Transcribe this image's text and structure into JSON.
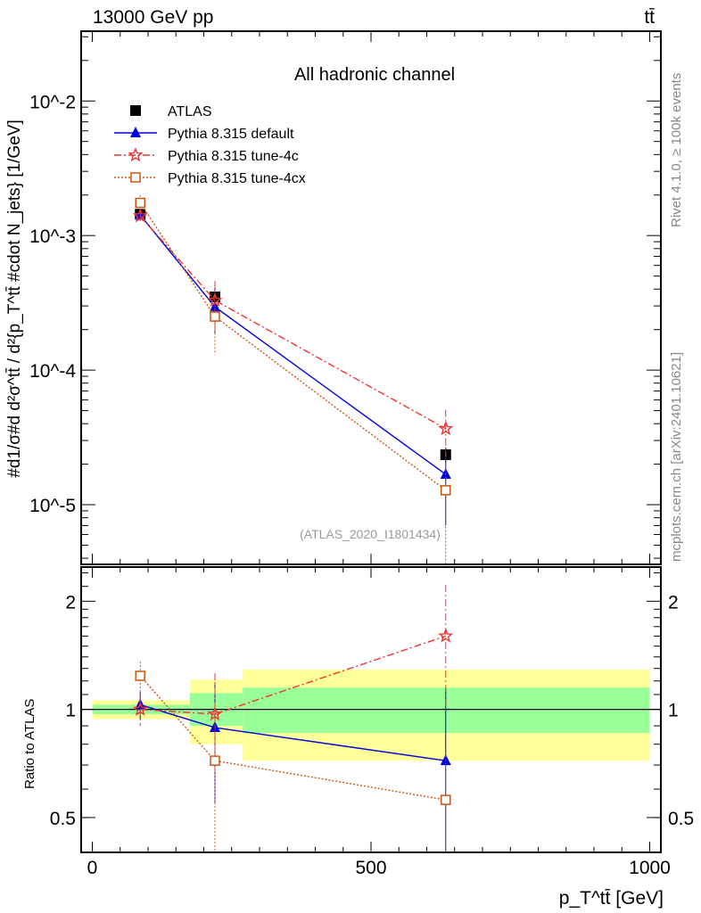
{
  "header": {
    "left": "13000 GeV pp",
    "right": "tt̄"
  },
  "side_labels": {
    "rivet": "Rivet 4.1.0, ≥ 100k events",
    "mcplots": "mcplots.cern.ch [arXiv:2401.10621]"
  },
  "chart_data": [
    {
      "type": "line",
      "title": "All hadronic channel",
      "annotation": "(ATLAS_2020_I1801434)",
      "ylabel": "#d1/σ#d d²σ^tt̄ / d²{p_T^tt̄ #cdot N_jets} [1/GeV]",
      "yscale": "log",
      "ylim": [
        3.6e-06,
        0.033
      ],
      "xlim": [
        -20,
        1020
      ],
      "ytick_labels": [
        "10^-2",
        "10^-3",
        "10^-4",
        "10^-5"
      ],
      "ytick_values": [
        0.01,
        0.001,
        0.0001,
        1e-05
      ],
      "legend_position": "top-left",
      "x": [
        86,
        220,
        634
      ],
      "series": [
        {
          "name": "ATLAS",
          "color": "#000000",
          "marker": "square",
          "values": [
            0.00144,
            0.00035,
            2.35e-05
          ],
          "err_lo": [
            0.00012,
            6e-05,
            3e-06
          ],
          "err_hi": [
            0.00012,
            6e-05,
            3e-06
          ]
        },
        {
          "name": "Pythia 8.315 default",
          "color": "#0000dd",
          "marker": "triangle",
          "line": "solid",
          "values": [
            0.00142,
            0.000295,
            1.68e-05
          ],
          "err_lo": [
            0.00012,
            0.00011,
            9.8e-06
          ],
          "err_hi": [
            0.00012,
            0.00011,
            9.8e-06
          ]
        },
        {
          "name": "Pythia 8.315 tune-4c",
          "color": "#ee3333",
          "marker": "star",
          "line": "dashdot",
          "values": [
            0.0014,
            0.00033,
            3.67e-05
          ],
          "err_lo": [
            0.00016,
            0.00013,
            1.4e-05
          ],
          "err_hi": [
            0.00016,
            0.00013,
            1.4e-05
          ]
        },
        {
          "name": "Pythia 8.315 tune-4cx",
          "color": "#cc5511",
          "marker": "open-square",
          "line": "dotted",
          "values": [
            0.00175,
            0.00025,
            1.28e-05
          ],
          "err_lo": [
            0.00025,
            0.00012,
            1.2e-05
          ],
          "err_hi": [
            0.00025,
            0.00012,
            1.2e-05
          ]
        }
      ]
    },
    {
      "type": "line",
      "ylabel": "Ratio to ATLAS",
      "xlabel": "p_T^tt̄ [GeV]",
      "yscale": "log",
      "ylim": [
        0.4,
        2.49
      ],
      "xlim": [
        -20,
        1020
      ],
      "xtick_labels": [
        "0",
        "500",
        "1000"
      ],
      "xtick_values": [
        0,
        500,
        1000
      ],
      "ytick_labels": [
        "0.5",
        "1",
        "2"
      ],
      "ytick_values": [
        0.5,
        1,
        2
      ],
      "bins": [
        [
          0,
          175
        ],
        [
          175,
          270
        ],
        [
          270,
          1000
        ]
      ],
      "band_yellow": [
        [
          0.94,
          1.06
        ],
        [
          0.8,
          1.21
        ],
        [
          0.72,
          1.29
        ]
      ],
      "band_green": [
        [
          0.97,
          1.03
        ],
        [
          0.9,
          1.11
        ],
        [
          0.86,
          1.15
        ]
      ],
      "x": [
        86,
        220,
        634
      ],
      "series": [
        {
          "name": "Pythia 8.315 default",
          "values": [
            1.03,
            0.89,
            0.72
          ],
          "err_lo": [
            0.09,
            0.34,
            0.4
          ],
          "err_hi": [
            0.09,
            0.3,
            0.42
          ]
        },
        {
          "name": "Pythia 8.315 tune-4c",
          "values": [
            1.0,
            0.97,
            1.6
          ],
          "err_lo": [
            0.1,
            0.3,
            0.62
          ],
          "err_hi": [
            0.1,
            0.29,
            0.62
          ]
        },
        {
          "name": "Pythia 8.315 tune-4cx",
          "values": [
            1.24,
            0.72,
            0.56
          ],
          "err_lo": [
            0.2,
            0.4,
            0.2
          ],
          "err_hi": [
            0.12,
            0.3,
            0.2
          ]
        }
      ]
    }
  ]
}
